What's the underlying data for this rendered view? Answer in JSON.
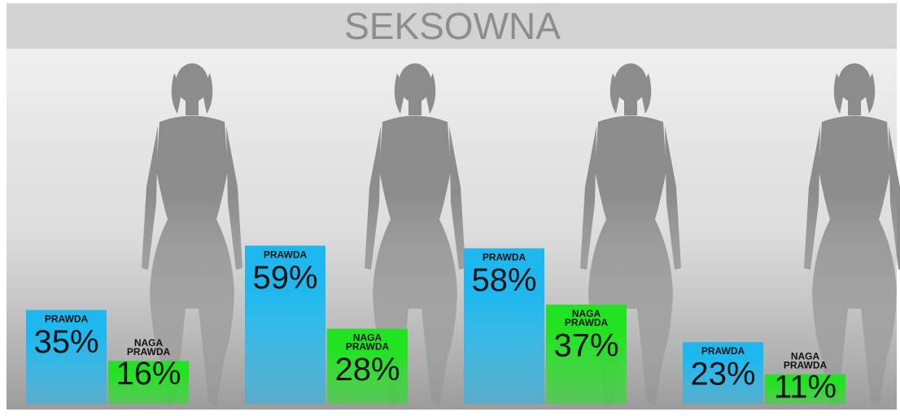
{
  "chart_data": {
    "type": "bar",
    "title": "SEKSOWNA",
    "categories": [
      null,
      null,
      null,
      null
    ],
    "series": [
      {
        "name": "PRAWDA",
        "color": "#1fb8ee",
        "values": [
          35,
          59,
          58,
          23
        ],
        "value_labels": [
          "35%",
          "59%",
          "58%",
          "23%"
        ]
      },
      {
        "name": "NAGA PRAWDA",
        "color": "#22e322",
        "values": [
          16,
          28,
          37,
          11
        ],
        "value_labels": [
          "16%",
          "28%",
          "37%",
          "11%"
        ]
      }
    ]
  }
}
